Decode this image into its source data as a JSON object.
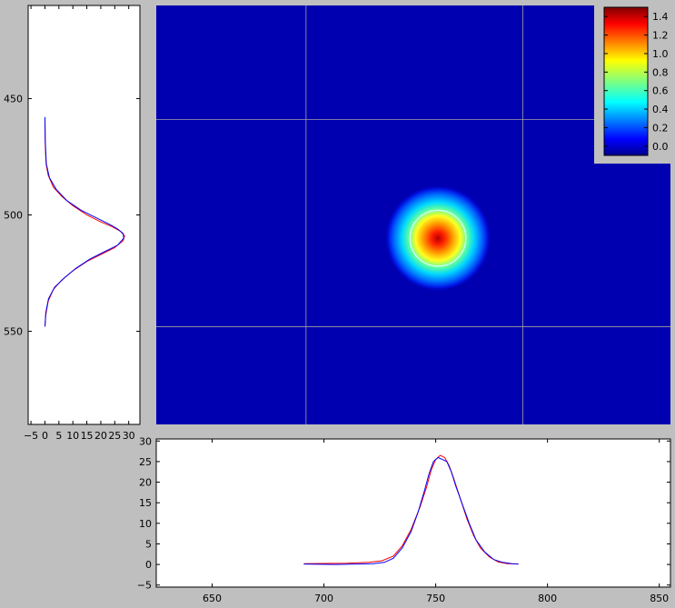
{
  "chart_data": [
    {
      "name": "image",
      "type": "heatmap",
      "title": "",
      "xlabel": "",
      "ylabel": "",
      "colormap": "jet",
      "xlim": [
        625,
        855
      ],
      "ylim": [
        590,
        410
      ],
      "gridlines_x": [
        692,
        789
      ],
      "gridlines_y": [
        459,
        548
      ],
      "spot": {
        "x": 751,
        "y": 510,
        "fit_circle_radius": 12.5,
        "peak": 1.4
      },
      "colorbar": {
        "ticks": [
          1.4,
          1.2,
          1.0,
          0.8,
          0.6,
          0.4,
          0.2,
          0.0
        ],
        "range": [
          -0.1,
          1.5
        ],
        "position": "top-right"
      },
      "colors": {
        "circle": "#c8fff4",
        "grid": "#a0a0a0"
      }
    },
    {
      "name": "vertical-profile",
      "type": "line",
      "orientation": "vertical",
      "xlim": [
        -6,
        34
      ],
      "ylim": [
        590,
        410
      ],
      "x_ticks": [
        -5,
        0,
        5,
        10,
        15,
        20,
        25,
        30
      ],
      "y_ticks": [
        450,
        500,
        550
      ],
      "series": [
        {
          "color": "#ff0000",
          "points": [
            [
              0,
              459
            ],
            [
              0.1,
              470
            ],
            [
              0.4,
              478
            ],
            [
              1.2,
              483
            ],
            [
              3,
              488
            ],
            [
              6,
              492
            ],
            [
              10,
              496
            ],
            [
              15,
              500
            ],
            [
              20,
              503
            ],
            [
              24,
              505
            ],
            [
              27,
              507
            ],
            [
              28.5,
              509
            ],
            [
              28,
              511
            ],
            [
              25,
              514
            ],
            [
              20,
              517
            ],
            [
              15,
              520
            ],
            [
              10,
              524
            ],
            [
              6,
              528
            ],
            [
              3,
              532
            ],
            [
              1.2,
              537
            ],
            [
              0.3,
              543
            ],
            [
              0,
              548
            ]
          ]
        },
        {
          "color": "#0000ff",
          "points": [
            [
              0,
              458
            ],
            [
              0.1,
              468
            ],
            [
              0.5,
              478
            ],
            [
              1.6,
              484
            ],
            [
              4,
              489
            ],
            [
              8,
              494
            ],
            [
              13,
              498
            ],
            [
              18,
              501
            ],
            [
              23,
              504
            ],
            [
              26,
              506
            ],
            [
              28,
              508
            ],
            [
              28.2,
              510
            ],
            [
              26,
              513
            ],
            [
              21,
              516
            ],
            [
              16,
              519
            ],
            [
              11,
              523
            ],
            [
              7,
              527
            ],
            [
              3.5,
              531
            ],
            [
              1.3,
              536
            ],
            [
              0.3,
              542
            ],
            [
              0,
              548
            ]
          ]
        }
      ]
    },
    {
      "name": "horizontal-profile",
      "type": "line",
      "xlim": [
        625,
        855
      ],
      "ylim": [
        -5.5,
        30.5
      ],
      "x_ticks": [
        650,
        700,
        750,
        800,
        850
      ],
      "y_ticks": [
        30,
        25,
        20,
        15,
        10,
        5,
        0,
        -5
      ],
      "series": [
        {
          "color": "#ff0000",
          "points": [
            [
              691,
              0.2
            ],
            [
              710,
              0.3
            ],
            [
              720,
              0.5
            ],
            [
              726,
              0.9
            ],
            [
              731,
              2
            ],
            [
              735,
              4.5
            ],
            [
              739,
              8.5
            ],
            [
              743,
              14
            ],
            [
              746,
              19
            ],
            [
              748,
              23
            ],
            [
              750,
              25.5
            ],
            [
              752,
              26.5
            ],
            [
              754,
              26
            ],
            [
              756,
              24
            ],
            [
              758,
              21
            ],
            [
              761,
              16
            ],
            [
              764,
              11
            ],
            [
              767,
              7
            ],
            [
              770,
              4
            ],
            [
              774,
              1.8
            ],
            [
              778,
              0.6
            ],
            [
              782,
              0.2
            ],
            [
              787,
              0.1
            ]
          ]
        },
        {
          "color": "#0000ff",
          "points": [
            [
              691,
              0.1
            ],
            [
              705,
              0.0
            ],
            [
              715,
              0.1
            ],
            [
              722,
              0.2
            ],
            [
              727,
              0.5
            ],
            [
              731,
              1.5
            ],
            [
              735,
              4
            ],
            [
              739,
              8
            ],
            [
              742,
              12.5
            ],
            [
              745,
              18
            ],
            [
              747,
              22
            ],
            [
              749,
              25
            ],
            [
              751,
              26
            ],
            [
              753,
              25.5
            ],
            [
              755,
              25
            ],
            [
              757,
              22.5
            ],
            [
              759,
              19
            ],
            [
              762,
              14.5
            ],
            [
              765,
              10
            ],
            [
              768,
              6
            ],
            [
              772,
              3
            ],
            [
              776,
              1.2
            ],
            [
              780,
              0.5
            ],
            [
              784,
              0.2
            ],
            [
              787,
              0.1
            ]
          ]
        }
      ]
    }
  ]
}
